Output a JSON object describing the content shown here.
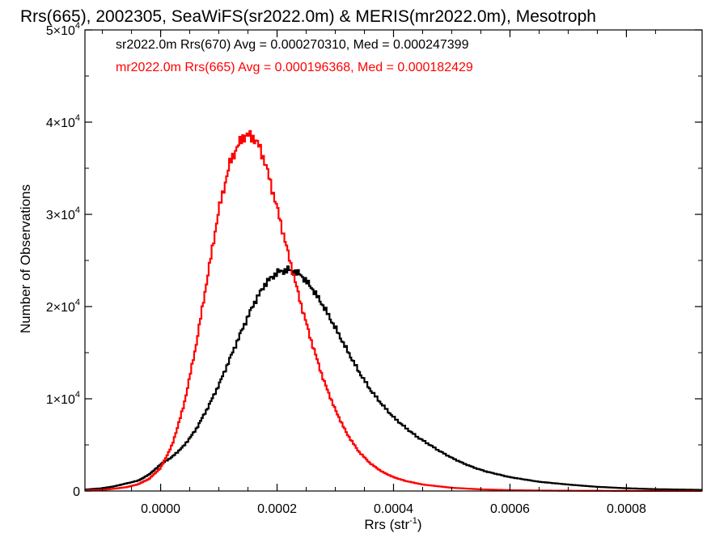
{
  "chart_data": {
    "type": "histogram",
    "title": "Rrs(665), 2002305, SeaWiFS(sr2022.0m) & MERIS(mr2022.0m), Mesotroph",
    "xlabel": {
      "text": "Rrs (str",
      "sup": "-1",
      "tail": ")"
    },
    "ylabel": "Number of Observations",
    "xlim": [
      -0.00013,
      0.00093
    ],
    "ylim": [
      0,
      50000
    ],
    "grid": false,
    "x_ticks": [
      {
        "value": 0.0,
        "label": "0.0000"
      },
      {
        "value": 0.0002,
        "label": "0.0002"
      },
      {
        "value": 0.0004,
        "label": "0.0004"
      },
      {
        "value": 0.0006,
        "label": "0.0006"
      },
      {
        "value": 0.0008,
        "label": "0.0008"
      }
    ],
    "y_ticks": [
      {
        "value": 0,
        "mant": "0",
        "exp": ""
      },
      {
        "value": 10000,
        "mant": "1×10",
        "exp": "4"
      },
      {
        "value": 20000,
        "mant": "2×10",
        "exp": "4"
      },
      {
        "value": 30000,
        "mant": "3×10",
        "exp": "4"
      },
      {
        "value": 40000,
        "mant": "4×10",
        "exp": "4"
      },
      {
        "value": 50000,
        "mant": "5×10",
        "exp": "4"
      }
    ],
    "legend": [
      {
        "text": "sr2022.0m Rrs(670) Avg = 0.000270310, Med = 0.000247399",
        "color": "#000000"
      },
      {
        "text": "mr2022.0m Rrs(665) Avg = 0.000196368, Med = 0.000182429",
        "color": "#ff0000"
      }
    ],
    "legend_position": "top-left",
    "series": [
      {
        "color": "#000000",
        "points": [
          [
            -0.00013,
            150
          ],
          [
            -0.0001,
            300
          ],
          [
            -8e-05,
            500
          ],
          [
            -6e-05,
            800
          ],
          [
            -4e-05,
            1100
          ],
          [
            -3e-05,
            1400
          ],
          [
            -2e-05,
            1800
          ],
          [
            -1e-05,
            2300
          ],
          [
            0.0,
            2900
          ],
          [
            2e-05,
            3700
          ],
          [
            4e-05,
            4900
          ],
          [
            6e-05,
            6600
          ],
          [
            8e-05,
            8900
          ],
          [
            0.0001,
            11500
          ],
          [
            0.00012,
            14500
          ],
          [
            0.00014,
            17500
          ],
          [
            0.00016,
            20300
          ],
          [
            0.00018,
            22500
          ],
          [
            0.0002,
            23700
          ],
          [
            0.00022,
            24000
          ],
          [
            0.00024,
            23500
          ],
          [
            0.00026,
            22000
          ],
          [
            0.00028,
            20000
          ],
          [
            0.0003,
            17700
          ],
          [
            0.00032,
            15300
          ],
          [
            0.00034,
            13000
          ],
          [
            0.00036,
            11000
          ],
          [
            0.00038,
            9400
          ],
          [
            0.0004,
            8000
          ],
          [
            0.00042,
            6900
          ],
          [
            0.00044,
            5900
          ],
          [
            0.00046,
            5100
          ],
          [
            0.00048,
            4300
          ],
          [
            0.0005,
            3600
          ],
          [
            0.00052,
            3000
          ],
          [
            0.00054,
            2500
          ],
          [
            0.00056,
            2100
          ],
          [
            0.0006,
            1500
          ],
          [
            0.00065,
            1000
          ],
          [
            0.0007,
            700
          ],
          [
            0.00075,
            450
          ],
          [
            0.0008,
            300
          ],
          [
            0.00085,
            200
          ],
          [
            0.00093,
            120
          ]
        ]
      },
      {
        "color": "#ff0000",
        "points": [
          [
            -0.00013,
            60
          ],
          [
            -0.0001,
            120
          ],
          [
            -8e-05,
            250
          ],
          [
            -6e-05,
            400
          ],
          [
            -4e-05,
            700
          ],
          [
            -2e-05,
            1300
          ],
          [
            0.0,
            2500
          ],
          [
            2e-05,
            5000
          ],
          [
            4e-05,
            9300
          ],
          [
            6e-05,
            15500
          ],
          [
            8e-05,
            23000
          ],
          [
            0.0001,
            30500
          ],
          [
            0.00012,
            35800
          ],
          [
            0.00014,
            38300
          ],
          [
            0.00015,
            38600
          ],
          [
            0.00016,
            38300
          ],
          [
            0.00017,
            37300
          ],
          [
            0.00018,
            35500
          ],
          [
            0.0002,
            30700
          ],
          [
            0.00022,
            25500
          ],
          [
            0.00024,
            20500
          ],
          [
            0.00026,
            16000
          ],
          [
            0.00028,
            12000
          ],
          [
            0.0003,
            8800
          ],
          [
            0.00032,
            6200
          ],
          [
            0.00034,
            4300
          ],
          [
            0.00036,
            3000
          ],
          [
            0.00038,
            2100
          ],
          [
            0.0004,
            1500
          ],
          [
            0.00042,
            1100
          ],
          [
            0.00045,
            700
          ],
          [
            0.0005,
            350
          ],
          [
            0.00055,
            180
          ],
          [
            0.0006,
            90
          ],
          [
            0.00065,
            50
          ],
          [
            0.0007,
            30
          ],
          [
            0.0008,
            10
          ],
          [
            0.00093,
            5
          ]
        ]
      }
    ]
  }
}
